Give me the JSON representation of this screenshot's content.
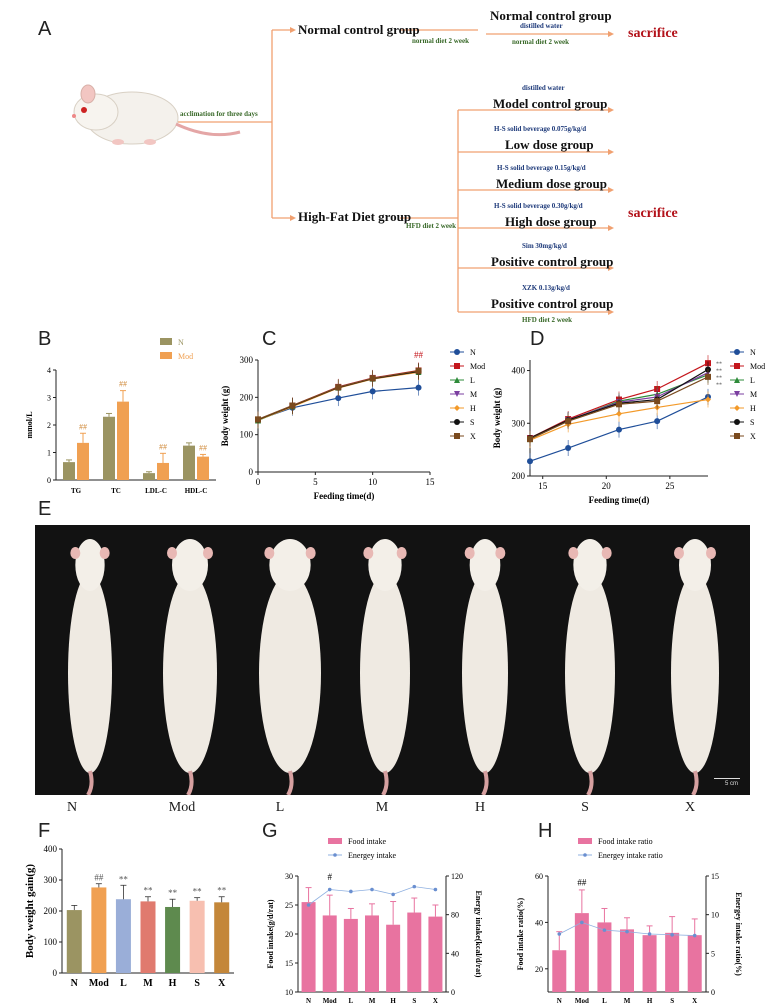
{
  "panels": {
    "A": "A",
    "B": "B",
    "C": "C",
    "D": "D",
    "E": "E",
    "F": "F",
    "G": "G",
    "H": "H"
  },
  "panelA": {
    "acclimation": "acclimation for three days",
    "normal_group": "Normal control group",
    "normal_diet": "normal diet 2 week",
    "normal_target_title": "Normal control group",
    "normal_target_sub": "distilled water",
    "normal_target_diet": "normal diet 2 week",
    "hfd_group": "High-Fat Diet group",
    "hfd_diet": "HFD diet 2 week",
    "sacrifice": "sacrifice",
    "groups": [
      {
        "sub": "distilled water",
        "title": "Model control group"
      },
      {
        "sub": "H-S solid beverage 0.075g/kg/d",
        "title": "Low dose group"
      },
      {
        "sub": "H-S solid beverage 0.15g/kg/d",
        "title": "Medium dose group"
      },
      {
        "sub": "H-S solid beverage 0.30g/kg/d",
        "title": "High dose group"
      },
      {
        "sub": "Sim 30mg/kg/d",
        "title": "Positive control group"
      },
      {
        "sub": "XZK 0.13g/kg/d",
        "title": "Positive control group"
      }
    ],
    "bottom_diet": "HFD diet 2 week"
  },
  "colors": {
    "N": "#9b9462",
    "Mod": "#f0a052",
    "lineN": "#1f4e99",
    "lineMod": "#c4161c",
    "lineL": "#2e8b3a",
    "lineM": "#7b3fa0",
    "lineH": "#f39a2a",
    "lineS": "#111111",
    "lineX": "#7a4a1e",
    "pink": "#e873a0",
    "barF": [
      "#9b9462",
      "#f0a052",
      "#9aaed8",
      "#e07a6e",
      "#5e8a4e",
      "#f7bfb0",
      "#c4873a"
    ]
  },
  "chart_data": [
    {
      "id": "B",
      "type": "bar",
      "categories": [
        "TG",
        "TC",
        "LDL-C",
        "HDL-C"
      ],
      "series": [
        {
          "name": "N",
          "values": [
            0.65,
            2.3,
            0.25,
            1.25
          ],
          "err": [
            0.08,
            0.12,
            0.05,
            0.1
          ]
        },
        {
          "name": "Mod",
          "values": [
            1.35,
            2.85,
            0.62,
            0.85
          ],
          "err": [
            0.35,
            0.4,
            0.35,
            0.08
          ]
        }
      ],
      "ylabel": "mmol/L",
      "ylim": [
        0,
        4
      ],
      "yticks": [
        0,
        1,
        2,
        3,
        4
      ],
      "annotations": [
        "##",
        "##",
        "##",
        "##"
      ]
    },
    {
      "id": "C",
      "type": "line",
      "x": [
        0,
        3,
        7,
        10,
        14
      ],
      "series": [
        {
          "name": "N",
          "values": [
            140,
            172,
            198,
            216,
            226
          ]
        },
        {
          "name": "Mod",
          "values": [
            140,
            178,
            228,
            252,
            272
          ]
        },
        {
          "name": "L",
          "values": [
            138,
            176,
            226,
            250,
            268
          ]
        },
        {
          "name": "M",
          "values": [
            140,
            177,
            227,
            251,
            270
          ]
        },
        {
          "name": "H",
          "values": [
            139,
            175,
            225,
            249,
            267
          ]
        },
        {
          "name": "S",
          "values": [
            140,
            177,
            226,
            250,
            269
          ]
        },
        {
          "name": "X",
          "values": [
            141,
            178,
            227,
            251,
            271
          ]
        }
      ],
      "xlabel": "Feeding time(d)",
      "ylabel": "Body weight (g)",
      "xlim": [
        0,
        15
      ],
      "ylim": [
        0,
        300
      ],
      "xticks": [
        0,
        5,
        10,
        15
      ],
      "yticks": [
        0,
        100,
        200,
        300
      ],
      "annotation": "##"
    },
    {
      "id": "D",
      "type": "line",
      "x": [
        14,
        17,
        21,
        24,
        28
      ],
      "series": [
        {
          "name": "N",
          "values": [
            228,
            253,
            288,
            304,
            350
          ]
        },
        {
          "name": "Mod",
          "values": [
            272,
            308,
            345,
            365,
            414
          ]
        },
        {
          "name": "L",
          "values": [
            270,
            305,
            342,
            355,
            392
          ]
        },
        {
          "name": "M",
          "values": [
            271,
            306,
            340,
            350,
            396
          ]
        },
        {
          "name": "H",
          "values": [
            268,
            298,
            318,
            330,
            345
          ]
        },
        {
          "name": "S",
          "values": [
            272,
            306,
            338,
            345,
            402
          ]
        },
        {
          "name": "X",
          "values": [
            270,
            304,
            336,
            342,
            388
          ]
        }
      ],
      "xlabel": "Feeding time(d)",
      "ylabel": "Body weight (g)",
      "xlim": [
        14,
        28
      ],
      "ylim": [
        200,
        420
      ],
      "xticks": [
        15,
        20,
        25
      ],
      "yticks": [
        200,
        300,
        400
      ],
      "annotation": "**"
    },
    {
      "id": "F",
      "type": "bar",
      "categories": [
        "N",
        "Mod",
        "L",
        "M",
        "H",
        "S",
        "X"
      ],
      "values": [
        203,
        276,
        238,
        231,
        213,
        233,
        228
      ],
      "err": [
        15,
        12,
        45,
        15,
        25,
        10,
        18
      ],
      "annotations": [
        "",
        "##",
        "**",
        "**",
        "**",
        "**",
        "**"
      ],
      "ylabel": "Body weight gain(g)",
      "ylim": [
        0,
        400
      ],
      "yticks": [
        0,
        100,
        200,
        300,
        400
      ]
    },
    {
      "id": "G",
      "type": "bar",
      "categories": [
        "N",
        "Mod",
        "L",
        "M",
        "H",
        "S",
        "X"
      ],
      "series": [
        {
          "name": "Food intake",
          "values": [
            25.5,
            23.2,
            22.6,
            23.2,
            21.6,
            23.7,
            23.0
          ],
          "err": [
            2.5,
            3.5,
            1.8,
            2.0,
            4.0,
            2.5,
            2.0
          ]
        },
        {
          "name": "Energey intake",
          "values": [
            90,
            106,
            104,
            106,
            101,
            109,
            106
          ]
        }
      ],
      "annotation": "#",
      "ylabel": "Food intake(g/d/rat)",
      "y2label": "Energy intake(kcal/d/rat)",
      "ylim": [
        10,
        30
      ],
      "yticks": [
        10,
        15,
        20,
        25,
        30
      ],
      "y2lim": [
        0,
        120
      ],
      "y2ticks": [
        0,
        40,
        80,
        120
      ]
    },
    {
      "id": "H",
      "type": "bar",
      "categories": [
        "N",
        "Mod",
        "L",
        "M",
        "H",
        "S",
        "X"
      ],
      "series": [
        {
          "name": "Food intake ratio",
          "values": [
            28,
            44,
            40,
            37,
            34.5,
            35.5,
            34.5
          ],
          "err": [
            8,
            10,
            6,
            5,
            4,
            7,
            7
          ]
        },
        {
          "name": "Energey intake ratio",
          "values": [
            7.5,
            9.0,
            8.0,
            7.8,
            7.5,
            7.4,
            7.3
          ]
        }
      ],
      "annotation": "##",
      "ylabel": "Food intake ratio(%)",
      "y2label": "Energey intake ratio(%)",
      "ylim": [
        10,
        60
      ],
      "yticks": [
        20,
        40,
        60
      ],
      "y2lim": [
        0,
        15
      ],
      "y2ticks": [
        0,
        5,
        10,
        15
      ]
    }
  ],
  "panelE": {
    "labels": [
      "N",
      "Mod",
      "L",
      "M",
      "H",
      "S",
      "X"
    ],
    "scale": "5 cm"
  }
}
